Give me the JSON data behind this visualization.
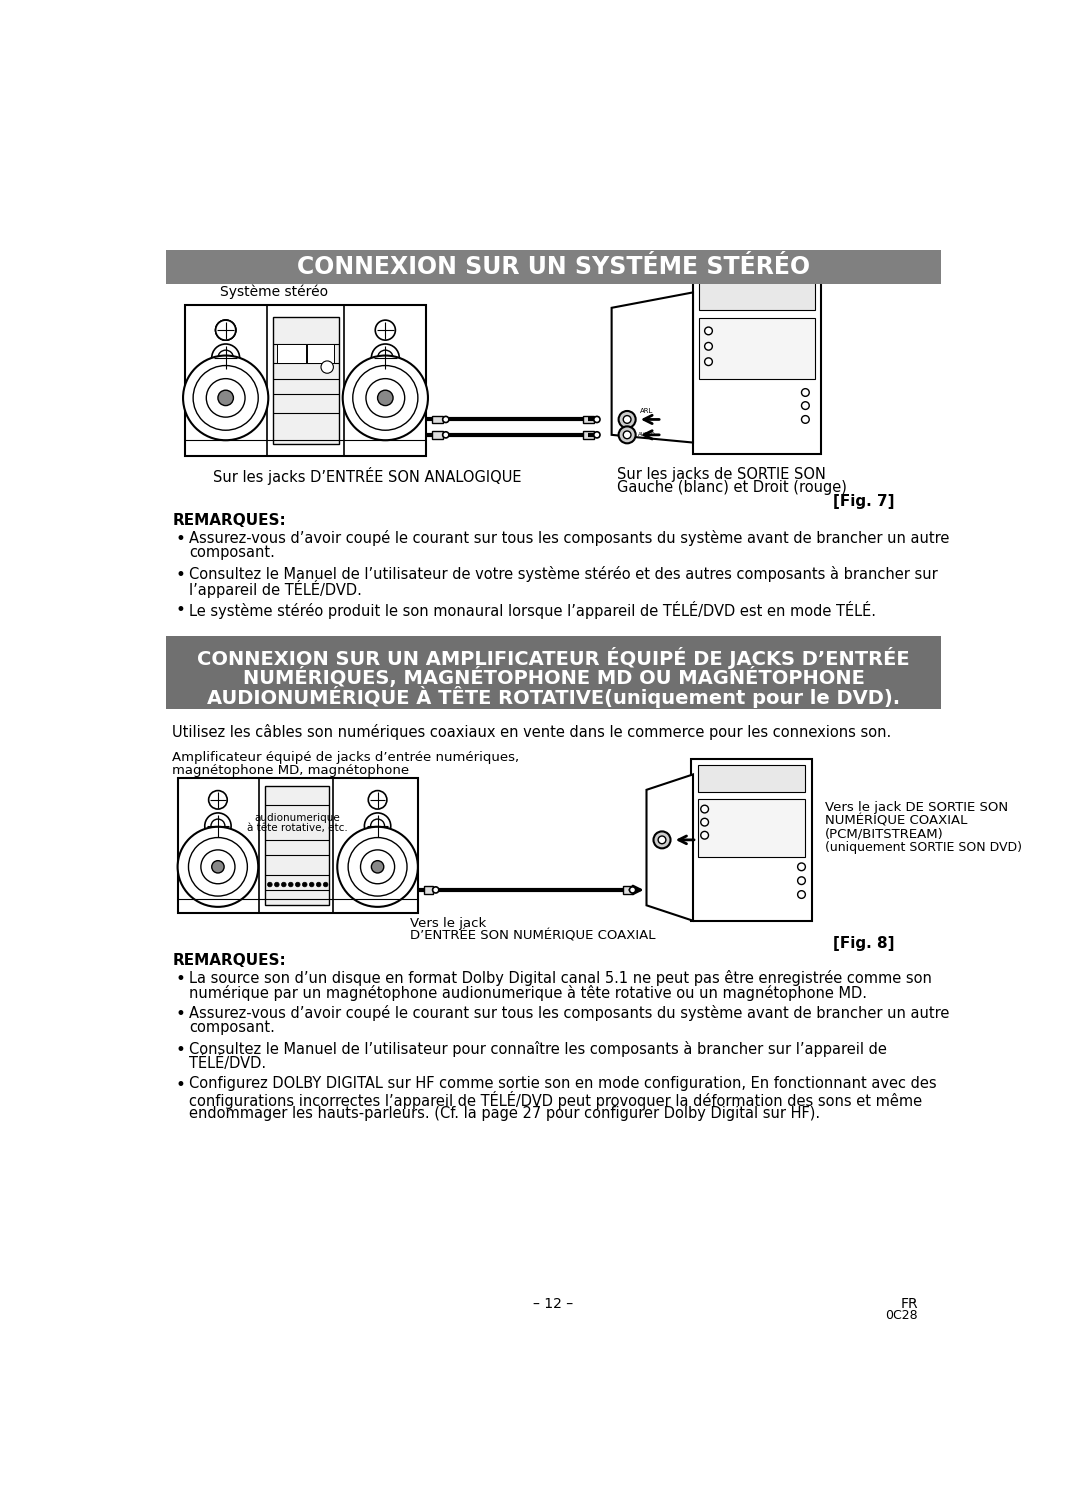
{
  "bg_color": "#ffffff",
  "header1_bg": "#808080",
  "header1_text": "CONNEXION SUR UN SYSTÉME STÉRÉO",
  "header2_bg": "#707070",
  "header2_line1": "CONNEXION SUR UN AMPLIFICATEUR ÉQUIPÉ DE JACKS D’ENTRÉE",
  "header2_line2": "NUMÉRIQUES, MAGNÉTOPHONE MD OU MAGNÉTOPHONE",
  "header2_line3_bold": "AUDIONUМÉRIQUE À TÊTE ROTATIVE",
  "header2_line3_normal": "(uniquement pour le DVD).",
  "section1_label": "Système stéréo",
  "caption1a": "Sur les jacks D’ENTRÉE SON ANALOGIQUE",
  "caption1b_line1": "Sur les jacks de SORTIE SON",
  "caption1b_line2": "Gauche (blanc) et Droit (rouge)",
  "fig7": "[Fig. 7]",
  "remarques1_title": "REMARQUES:",
  "remarques1_bullets": [
    "Assurez-vous d’avoir coupé le courant sur tous les composants du système avant de brancher un autre composant.",
    "Consultez le Manuel de l’utilisateur de votre système stéréo et des autres composants à brancher sur l’appareil de TÉLÉ/DVD.",
    "Le système stéréo produit le son monaural lorsque l’appareil de TÉLÉ/DVD est en mode TÉLÉ."
  ],
  "intro2": "Utilisez les câbles son numériques coaxiaux en vente dans le commerce pour les connexions son.",
  "section2_label_line1": "Amplificateur équipé de jacks d’entrée numériques,",
  "section2_label_line2": "magnétophone MD, magnétophone",
  "section2_label_line3": "audionumerique",
  "section2_label_line4": "à tête rotative, etc.",
  "caption2a_line1": "Vers le jack",
  "caption2a_line2": "D’ENTRÉE SON NUMÉRIQUE COAXIAL",
  "caption2b_line1": "Vers le jack DE SORTIE SON",
  "caption2b_line2": "NUMÉRIQUE COAXIAL",
  "caption2b_line3": "(PCM/BITSTREAM)",
  "caption2b_line4": "(uniquement SORTIE SON DVD)",
  "fig8": "[Fig. 8]",
  "remarques2_title": "REMARQUES:",
  "remarques2_bullets": [
    "La source son d’un disque en format Dolby Digital canal 5.1 ne peut pas être enregistrée comme son numérique par un magnétophone audionumerique à tête rotative ou un magnétophone MD.",
    "Assurez-vous d’avoir coupé le courant sur tous les composants du système avant de brancher un autre composant.",
    "Consultez le Manuel de l’utilisateur pour connaître les composants à brancher sur l’appareil de TÉLÉ/DVD.",
    "Configurez DOLBY DIGITAL sur HF comme sortie son en mode configuration, En fonctionnant avec des configurations incorrectes l’appareil de TÉLÉ/DVD peut provoquer la déformation des sons et même endommager les hauts-parleurs. (Cf. la page 27 pour configurer Dolby Digital sur HF)."
  ],
  "footer_page": "– 12 –",
  "footer_fr": "FR",
  "footer_code": "0C28"
}
